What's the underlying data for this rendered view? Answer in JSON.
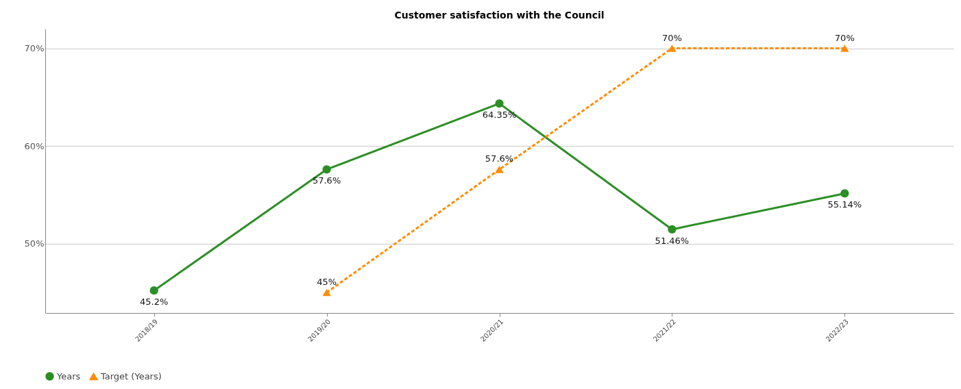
{
  "chart_data": {
    "type": "line",
    "title": "Customer satisfaction with the Council",
    "categories": [
      "2018/19",
      "2019/20",
      "2020/21",
      "2021/22",
      "2022/23"
    ],
    "series": [
      {
        "name": "Years",
        "color": "#2b8f24",
        "marker": "circle",
        "line_style": "solid",
        "values": [
          45.2,
          57.6,
          64.35,
          51.46,
          55.14
        ],
        "value_labels": [
          "45.2%",
          "57.6%",
          "64.35%",
          "51.46%",
          "55.14%"
        ]
      },
      {
        "name": "Target (Years)",
        "color": "#ff8c00",
        "marker": "triangle",
        "line_style": "dashed",
        "values": [
          null,
          45,
          57.6,
          70,
          70
        ],
        "value_labels": [
          null,
          "45%",
          "57.6%",
          "70%",
          "70%"
        ]
      }
    ],
    "ylim": [
      42.9,
      72
    ],
    "yticks": [
      {
        "value": 50,
        "label": "50%"
      },
      {
        "value": 60,
        "label": "60%"
      },
      {
        "value": 70,
        "label": "70%"
      }
    ],
    "grid": "y",
    "legend": "bottom"
  }
}
